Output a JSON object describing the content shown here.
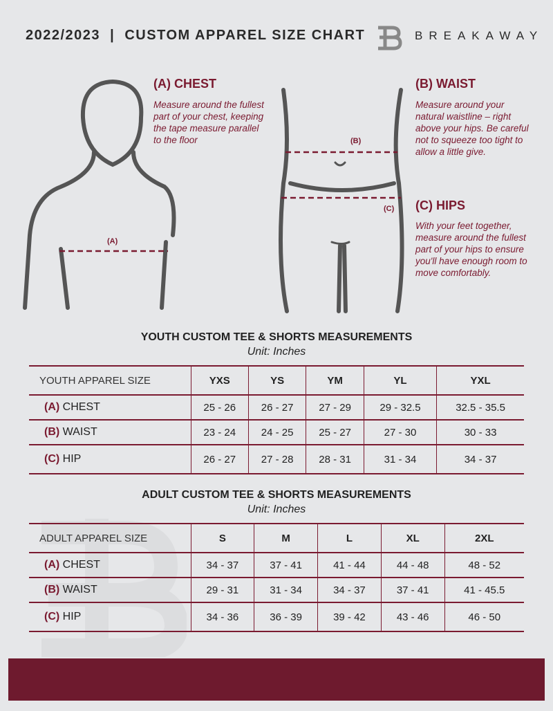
{
  "header": {
    "title": "2022/2023  |  CUSTOM APPAREL SIZE CHART",
    "brand": "BREAKAWAY"
  },
  "guide": {
    "chest": {
      "heading": "(A) CHEST",
      "text": "Measure around the fullest part of your chest, keeping the tape measure parallel to the floor",
      "marker": "(A)"
    },
    "waist": {
      "heading": "(B) WAIST",
      "text": "Measure around your natural waistline – right above your hips. Be careful not to squeeze too tight to allow a little give.",
      "marker": "(B)"
    },
    "hips": {
      "heading": "(C) HIPS",
      "text": "With your feet together, measure around the fullest part of your hips to ensure you'll have enough room to move comfortably.",
      "marker": "(C)"
    }
  },
  "youth": {
    "title": "YOUTH CUSTOM TEE & SHORTS MEASUREMENTS",
    "unit": "Unit: Inches",
    "size_label": "YOUTH APPAREL SIZE",
    "sizes": [
      "YXS",
      "YS",
      "YM",
      "YL",
      "YXL"
    ],
    "rows": [
      {
        "code": "(A)",
        "name": "CHEST",
        "values": [
          "25 - 26",
          "26 - 27",
          "27 - 29",
          "29 - 32.5",
          "32.5 - 35.5"
        ]
      },
      {
        "code": "(B)",
        "name": "WAIST",
        "values": [
          "23 - 24",
          "24 - 25",
          "25 - 27",
          "27 - 30",
          "30 - 33"
        ]
      },
      {
        "code": "(C)",
        "name": "HIP",
        "values": [
          "26 - 27",
          "27 - 28",
          "28 - 31",
          "31 - 34",
          "34 - 37"
        ]
      }
    ]
  },
  "adult": {
    "title": "ADULT CUSTOM TEE & SHORTS MEASUREMENTS",
    "unit": "Unit: Inches",
    "size_label": "ADULT APPAREL SIZE",
    "sizes": [
      "S",
      "M",
      "L",
      "XL",
      "2XL"
    ],
    "rows": [
      {
        "code": "(A)",
        "name": "CHEST",
        "values": [
          "34 - 37",
          "37 - 41",
          "41 - 44",
          "44 - 48",
          "48 - 52"
        ]
      },
      {
        "code": "(B)",
        "name": "WAIST",
        "values": [
          "29 - 31",
          "31 - 34",
          "34 - 37",
          "37 - 41",
          "41 - 45.5"
        ]
      },
      {
        "code": "(C)",
        "name": "HIP",
        "values": [
          "34 - 36",
          "36 - 39",
          "39 - 42",
          "43 - 46",
          "46 - 50"
        ]
      }
    ]
  },
  "colors": {
    "accent": "#7a1a30",
    "footer": "#6e1a2e",
    "background": "#e6e7e9"
  }
}
